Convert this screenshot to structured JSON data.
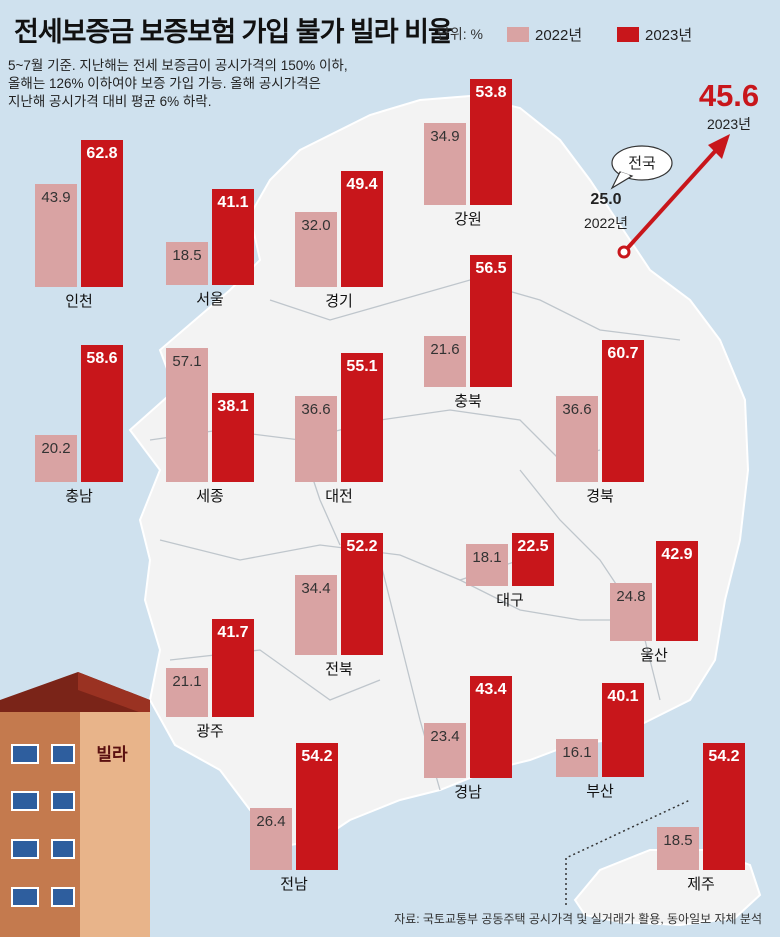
{
  "title": "전세보증금 보증보험 가입 불가 빌라 비율",
  "unit": "단위: %",
  "legend": [
    {
      "label": "2022년",
      "color": "#d9a3a3"
    },
    {
      "label": "2023년",
      "color": "#c8161b"
    }
  ],
  "note": "5~7월 기준. 지난해는 전세 보증금이 공시가격의 150% 이하,\n올해는 126% 이하여야 보증 가입 가능. 올해 공시가격은\n지난해 공시가격 대비 평균 6% 하락.",
  "national": {
    "label": "전국",
    "v2022": "25.0",
    "y2022": "2022년",
    "v2023": "45.6",
    "y2023": "2023년"
  },
  "building_sign": "빌라",
  "source": "자료: 국토교통부 공동주택 공시가격 및 실거래가 활용, 동아일보 자체 분석",
  "chart_data": {
    "type": "bar",
    "title": "전세보증금 보증보험 가입 불가 빌라 비율",
    "unit": "%",
    "series_names": [
      "2022년",
      "2023년"
    ],
    "national": {
      "2022": 25.0,
      "2023": 45.6
    },
    "regions": [
      {
        "name": "인천",
        "v2022": 43.9,
        "v2023": 62.8
      },
      {
        "name": "서울",
        "v2022": 18.5,
        "v2023": 41.1
      },
      {
        "name": "경기",
        "v2022": 32.0,
        "v2023": 49.4
      },
      {
        "name": "강원",
        "v2022": 34.9,
        "v2023": 53.8
      },
      {
        "name": "충북",
        "v2022": 21.6,
        "v2023": 56.5
      },
      {
        "name": "충남",
        "v2022": 20.2,
        "v2023": 58.6
      },
      {
        "name": "세종",
        "v2022": 57.1,
        "v2023": 38.1
      },
      {
        "name": "대전",
        "v2022": 36.6,
        "v2023": 55.1
      },
      {
        "name": "경북",
        "v2022": 36.6,
        "v2023": 60.7
      },
      {
        "name": "대구",
        "v2022": 18.1,
        "v2023": 22.5
      },
      {
        "name": "울산",
        "v2022": 24.8,
        "v2023": 42.9
      },
      {
        "name": "전북",
        "v2022": 34.4,
        "v2023": 52.2
      },
      {
        "name": "광주",
        "v2022": 21.1,
        "v2023": 41.7
      },
      {
        "name": "경남",
        "v2022": 23.4,
        "v2023": 43.4
      },
      {
        "name": "부산",
        "v2022": 16.1,
        "v2023": 40.1
      },
      {
        "name": "전남",
        "v2022": 26.4,
        "v2023": 54.2
      },
      {
        "name": "제주",
        "v2022": 18.5,
        "v2023": 54.2
      }
    ]
  }
}
